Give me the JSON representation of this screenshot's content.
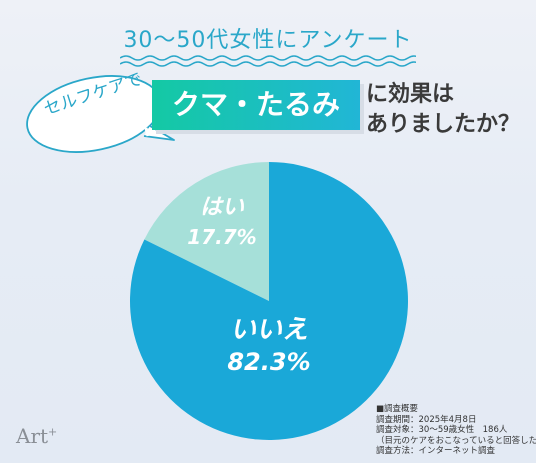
{
  "header": {
    "survey_target": "30〜50代女性にアンケート",
    "bubble_text": "セルフケアで",
    "highlight_text": "クマ・たるみ",
    "question_line1": "に効果は",
    "question_line2": "ありましたか？"
  },
  "colors": {
    "no": "#1aa8d8",
    "yes": "#a6e0d9",
    "accent": "#2aa7c9"
  },
  "chart_data": {
    "type": "pie",
    "slices": [
      {
        "label": "はい",
        "value": 17.7,
        "display": "17.7%"
      },
      {
        "label": "いいえ",
        "value": 82.3,
        "display": "82.3%"
      }
    ]
  },
  "survey": {
    "heading": "■調査概要",
    "period": "調査期間：2025年4月8日",
    "target": "調査対象：30～59歳女性　186人",
    "target_note": "（目元のケアをおこなっていると回答した方）",
    "method": "調査方法：インターネット調査"
  },
  "logo": {
    "text": "Art",
    "mark": "+"
  }
}
